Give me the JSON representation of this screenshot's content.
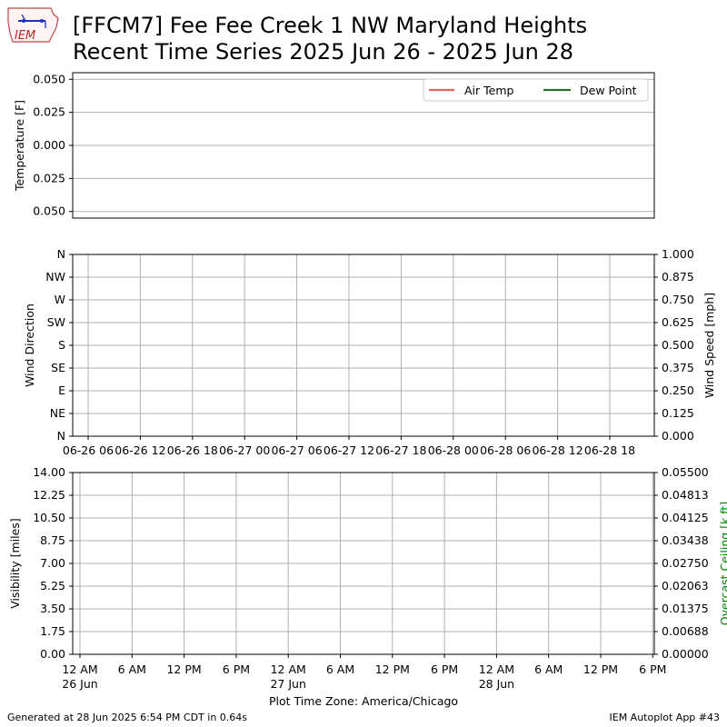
{
  "header": {
    "logo_text": "IEM",
    "title_line1": "[FFCM7] Fee Fee Creek 1 NW Maryland Heights",
    "title_line2": "Recent Time Series 2025 Jun 26 - 2025 Jun 28"
  },
  "footer": {
    "left": "Generated at 28 Jun 2025 6:54 PM CDT in 0.64s",
    "right": "IEM Autoplot App #43"
  },
  "colors": {
    "air_temp": "#e06666",
    "dew_point": "#2e6b2e",
    "ceiling_label": "#008000",
    "grid": "#b0b0b0"
  },
  "chart_data": [
    {
      "type": "line",
      "panel": "temperature",
      "ylabel": "Temperature [F]",
      "ylim": [
        -0.055,
        0.055
      ],
      "yticks": [
        "0.050",
        "0.025",
        "0.000",
        "0.025",
        "0.050"
      ],
      "ytick_values": [
        0.05,
        0.025,
        0.0,
        -0.025,
        -0.05
      ],
      "grid": true,
      "legend_position": "top-right",
      "series": [
        {
          "name": "Air Temp",
          "values": []
        },
        {
          "name": "Dew Point",
          "values": []
        }
      ]
    },
    {
      "type": "scatter",
      "panel": "wind",
      "ylabel": "Wind Direction",
      "y2label": "Wind Speed [mph]",
      "yticks": [
        "N",
        "NE",
        "E",
        "SE",
        "S",
        "SW",
        "W",
        "NW",
        "N"
      ],
      "y2ticks": [
        "0.000",
        "0.125",
        "0.250",
        "0.375",
        "0.500",
        "0.625",
        "0.750",
        "0.875",
        "1.000"
      ],
      "y2lim": [
        0,
        1
      ],
      "xticks": [
        "06-26 06",
        "06-26 12",
        "06-26 18",
        "06-27 00",
        "06-27 06",
        "06-27 12",
        "06-27 18",
        "06-28 00",
        "06-28 06",
        "06-28 12",
        "06-28 18"
      ],
      "grid": true,
      "series": []
    },
    {
      "type": "line",
      "panel": "visibility",
      "ylabel": "Visibility [miles]",
      "y2label": "Overcast Ceiling [k ft]",
      "ylim": [
        0,
        14
      ],
      "yticks": [
        "0.00",
        "1.75",
        "3.50",
        "5.25",
        "7.00",
        "8.75",
        "10.50",
        "12.25",
        "14.00"
      ],
      "y2lim": [
        0,
        0.055
      ],
      "y2ticks": [
        "0.00000",
        "0.00688",
        "0.01375",
        "0.02063",
        "0.02750",
        "0.03438",
        "0.04125",
        "0.04813",
        "0.05500"
      ],
      "xticks": [
        "12 AM",
        "6 AM",
        "12 PM",
        "6 PM",
        "12 AM",
        "6 AM",
        "12 PM",
        "6 PM",
        "12 AM",
        "6 AM",
        "12 PM",
        "6 PM"
      ],
      "xtick_sublabels": [
        "26 Jun",
        "",
        "",
        "",
        "27 Jun",
        "",
        "",
        "",
        "28 Jun",
        "",
        "",
        ""
      ],
      "xlabel": "Plot Time Zone: America/Chicago",
      "grid": true,
      "series": []
    }
  ]
}
